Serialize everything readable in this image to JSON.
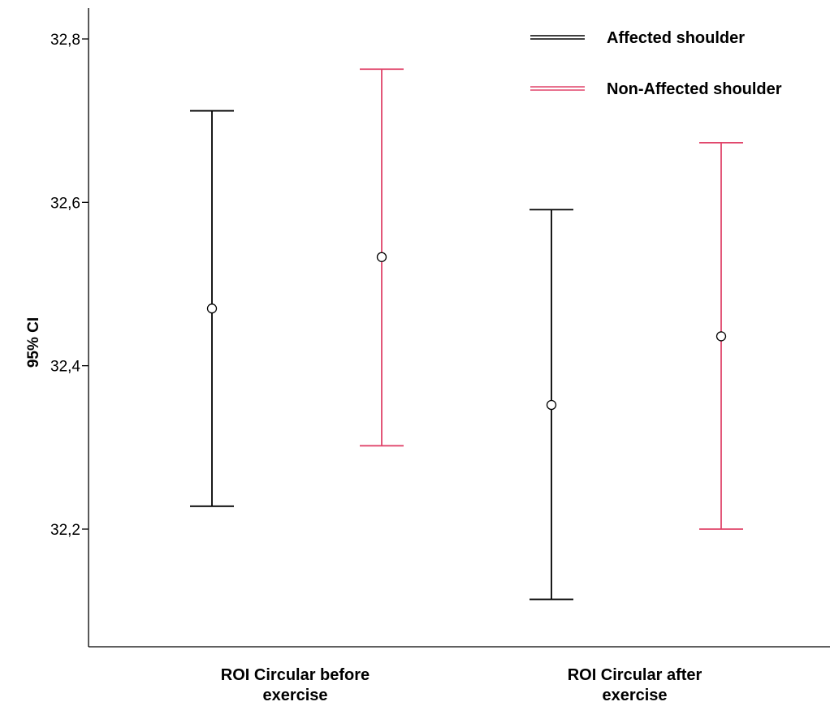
{
  "chart_data": {
    "type": "errorbar",
    "ylabel": "95% CI",
    "ylim": [
      32.09,
      32.84
    ],
    "yticks": [
      {
        "value": 32.2,
        "label": "32,2"
      },
      {
        "value": 32.4,
        "label": "32,4"
      },
      {
        "value": 32.6,
        "label": "32,6"
      },
      {
        "value": 32.8,
        "label": "32,8"
      }
    ],
    "categories": [
      {
        "lines": [
          "ROI Circular before",
          "exercise"
        ]
      },
      {
        "lines": [
          "ROI Circular after",
          "exercise"
        ]
      }
    ],
    "series": [
      {
        "name": "Affected shoulder",
        "color": "#000000",
        "points": [
          {
            "mean": 32.47,
            "lower": 32.228,
            "upper": 32.712
          },
          {
            "mean": 32.352,
            "lower": 32.114,
            "upper": 32.591
          }
        ]
      },
      {
        "name": "Non-Affected shoulder",
        "color": "#e0446a",
        "points": [
          {
            "mean": 32.533,
            "lower": 32.302,
            "upper": 32.763
          },
          {
            "mean": 32.436,
            "lower": 32.2,
            "upper": 32.673
          }
        ]
      }
    ],
    "legend_position": "top-right",
    "grid": false
  }
}
